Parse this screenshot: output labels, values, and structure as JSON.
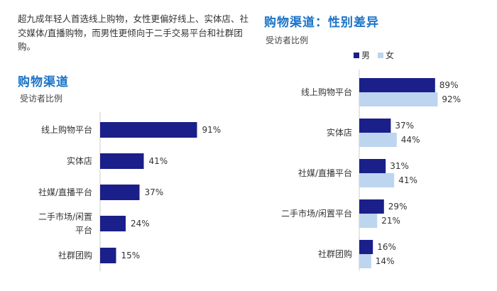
{
  "intro": {
    "text": "超九成年轻人首选线上购物，女性更偏好线上、实体店、社交媒体/直播购物，而男性更倾向于二手交易平台和社群团购。"
  },
  "colors": {
    "title": "#1a73c8",
    "male": "#1b1f8a",
    "female": "#bdd5ee",
    "axis": "#cccccc"
  },
  "chart_data": [
    {
      "type": "bar",
      "orientation": "horizontal",
      "title": "购物渠道",
      "subtitle": "受访者比例",
      "categories": [
        "线上购物平台",
        "实体店",
        "社媒/直播平台",
        "二手市场/闲置平台",
        "社群团购"
      ],
      "category_lines": [
        [
          "线上购物平台"
        ],
        [
          "实体店"
        ],
        [
          "社媒/直播平台"
        ],
        [
          "二手市场/闲置",
          "平台"
        ],
        [
          "社群团购"
        ]
      ],
      "values": [
        91,
        41,
        37,
        24,
        15
      ],
      "labels": [
        "91%",
        "41%",
        "37%",
        "24%",
        "15%"
      ],
      "xlim": [
        0,
        100
      ],
      "grid": false
    },
    {
      "type": "bar",
      "orientation": "horizontal",
      "title": "购物渠道：性别差异",
      "subtitle": "受访者比例",
      "categories": [
        "线上购物平台",
        "实体店",
        "社媒/直播平台",
        "二手市场/闲置平台",
        "社群团购"
      ],
      "series": [
        {
          "name": "男",
          "values": [
            89,
            37,
            31,
            29,
            16
          ],
          "labels": [
            "89%",
            "37%",
            "31%",
            "29%",
            "16%"
          ]
        },
        {
          "name": "女",
          "values": [
            92,
            44,
            41,
            21,
            14
          ],
          "labels": [
            "92%",
            "44%",
            "41%",
            "21%",
            "14%"
          ]
        }
      ],
      "xlim": [
        0,
        100
      ],
      "legend": "top-right",
      "grid": false
    }
  ]
}
